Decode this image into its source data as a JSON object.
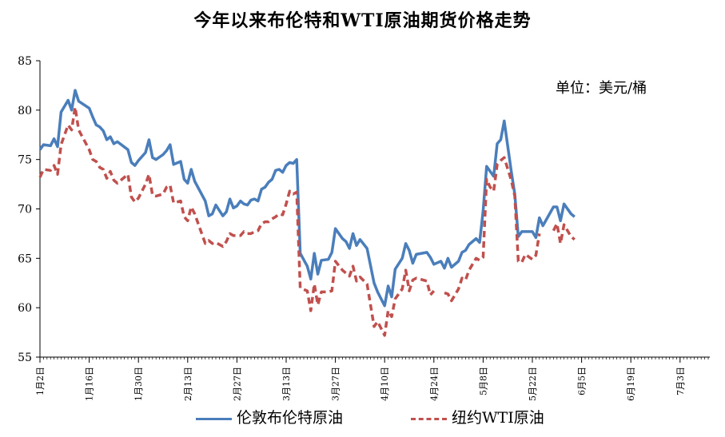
{
  "chart_data": {
    "type": "line",
    "title": "今年以来布伦特和WTI原油期货价格走势",
    "unit_label": "单位：美元/桶",
    "ylim": [
      55,
      85
    ],
    "y_ticks": [
      55,
      60,
      65,
      70,
      75,
      80,
      85
    ],
    "x_tick_labels": [
      "1月2日",
      "1月16日",
      "1月30日",
      "2月13日",
      "2月27日",
      "3月13日",
      "3月27日",
      "4月10日",
      "4月24日",
      "5月8日",
      "5月22日",
      "6月5日",
      "6月19日",
      "7月3日"
    ],
    "x_days": 136,
    "grid": false,
    "legend_position": "bottom",
    "series": [
      {
        "name": "伦敦布伦特原油",
        "color": "#4a7ebb",
        "points": [
          [
            0,
            76
          ],
          [
            1,
            76.5
          ],
          [
            3,
            76.4
          ],
          [
            4,
            77.1
          ],
          [
            5,
            76.3
          ],
          [
            6,
            79.8
          ],
          [
            8,
            81
          ],
          [
            9,
            80
          ],
          [
            10,
            82
          ],
          [
            11,
            80.9
          ],
          [
            14,
            80.2
          ],
          [
            15,
            79.3
          ],
          [
            16,
            78.5
          ],
          [
            17,
            78.3
          ],
          [
            18,
            77.9
          ],
          [
            19,
            77
          ],
          [
            20,
            77.3
          ],
          [
            21,
            76.6
          ],
          [
            22,
            76.8
          ],
          [
            25,
            76
          ],
          [
            26,
            74.7
          ],
          [
            27,
            74.4
          ],
          [
            28,
            74.9
          ],
          [
            30,
            75.7
          ],
          [
            31,
            77
          ],
          [
            32,
            75.2
          ],
          [
            33,
            75
          ],
          [
            35,
            75.5
          ],
          [
            36,
            75.9
          ],
          [
            37,
            76.5
          ],
          [
            38,
            74.5
          ],
          [
            40,
            74.8
          ],
          [
            41,
            73
          ],
          [
            42,
            72.6
          ],
          [
            43,
            74
          ],
          [
            44,
            72.8
          ],
          [
            47,
            70.8
          ],
          [
            48,
            69.3
          ],
          [
            49,
            69.5
          ],
          [
            50,
            70.4
          ],
          [
            52,
            69.3
          ],
          [
            53,
            69.7
          ],
          [
            54,
            71
          ],
          [
            55,
            70.1
          ],
          [
            56,
            70.3
          ],
          [
            57,
            70.8
          ],
          [
            58,
            70.5
          ],
          [
            59,
            70.4
          ],
          [
            60,
            70.9
          ],
          [
            61,
            71
          ],
          [
            62,
            70.8
          ],
          [
            63,
            72
          ],
          [
            64,
            72.2
          ],
          [
            65,
            72.7
          ],
          [
            66,
            73
          ],
          [
            67,
            73.9
          ],
          [
            68,
            74
          ],
          [
            69,
            73.7
          ],
          [
            70,
            74.4
          ],
          [
            71,
            74.7
          ],
          [
            72,
            74.6
          ],
          [
            73,
            75
          ],
          [
            74,
            65.5
          ],
          [
            76,
            64.2
          ],
          [
            77,
            62.9
          ],
          [
            78,
            65.5
          ],
          [
            79,
            63.4
          ],
          [
            80,
            64.8
          ],
          [
            82,
            64.9
          ],
          [
            83,
            65.6
          ],
          [
            84,
            68
          ],
          [
            86,
            67
          ],
          [
            87,
            66.7
          ],
          [
            88,
            66
          ],
          [
            89,
            67.5
          ],
          [
            90,
            66.3
          ],
          [
            91,
            66.9
          ],
          [
            93,
            66
          ],
          [
            95,
            62.5
          ],
          [
            96,
            61.6
          ],
          [
            98,
            60.2
          ],
          [
            99,
            62.2
          ],
          [
            100,
            61.1
          ],
          [
            101,
            63.9
          ],
          [
            103,
            65
          ],
          [
            104,
            66.5
          ],
          [
            105,
            65.8
          ],
          [
            106,
            64.5
          ],
          [
            107,
            65.4
          ],
          [
            110,
            65.6
          ],
          [
            111,
            65.1
          ],
          [
            112,
            64.4
          ],
          [
            114,
            64.7
          ],
          [
            115,
            64
          ],
          [
            116,
            65
          ],
          [
            117,
            64.1
          ],
          [
            119,
            64.7
          ],
          [
            120,
            65.6
          ],
          [
            121,
            65.8
          ],
          [
            122,
            66.4
          ],
          [
            124,
            67
          ],
          [
            125,
            66.6
          ],
          [
            126,
            69.8
          ],
          [
            127,
            74.3
          ],
          [
            128,
            73.8
          ],
          [
            129,
            73.3
          ],
          [
            130,
            76.6
          ],
          [
            131,
            77
          ],
          [
            132,
            78.9
          ],
          [
            134,
            73.8
          ],
          [
            135,
            71.5
          ],
          [
            136,
            67.2
          ],
          [
            137,
            67.7
          ],
          [
            140,
            67.7
          ],
          [
            141,
            67.1
          ],
          [
            142,
            69.1
          ],
          [
            143,
            68.3
          ],
          [
            146,
            70.2
          ],
          [
            147,
            70.2
          ],
          [
            148,
            68.8
          ],
          [
            149,
            70.5
          ],
          [
            151,
            69.5
          ],
          [
            152,
            69.2
          ]
        ]
      },
      {
        "name": "纽约WTI原油",
        "color": "#c0504d",
        "points": [
          [
            0,
            73.2
          ],
          [
            1,
            74
          ],
          [
            3,
            73.9
          ],
          [
            4,
            74.4
          ],
          [
            5,
            73.5
          ],
          [
            6,
            76.5
          ],
          [
            8,
            78.5
          ],
          [
            9,
            78
          ],
          [
            10,
            80.3
          ],
          [
            11,
            78
          ],
          [
            14,
            76
          ],
          [
            15,
            75
          ],
          [
            16,
            74.8
          ],
          [
            17,
            74.2
          ],
          [
            18,
            74
          ],
          [
            19,
            73.1
          ],
          [
            20,
            73.8
          ],
          [
            21,
            72.9
          ],
          [
            22,
            72.6
          ],
          [
            25,
            73.5
          ],
          [
            26,
            71.2
          ],
          [
            27,
            70.7
          ],
          [
            28,
            71.1
          ],
          [
            30,
            72.5
          ],
          [
            31,
            73.5
          ],
          [
            32,
            71.4
          ],
          [
            33,
            71.3
          ],
          [
            35,
            71.5
          ],
          [
            36,
            72.2
          ],
          [
            37,
            72.4
          ],
          [
            38,
            70.6
          ],
          [
            40,
            70.8
          ],
          [
            41,
            69.2
          ],
          [
            42,
            68.8
          ],
          [
            43,
            70.2
          ],
          [
            44,
            69.5
          ],
          [
            47,
            66.5
          ],
          [
            48,
            66.8
          ],
          [
            49,
            66.5
          ],
          [
            50,
            66.6
          ],
          [
            52,
            66.2
          ],
          [
            53,
            66.7
          ],
          [
            54,
            67.5
          ],
          [
            55,
            67.3
          ],
          [
            56,
            67.3
          ],
          [
            57,
            67.3
          ],
          [
            58,
            67.7
          ],
          [
            59,
            67.5
          ],
          [
            60,
            67.5
          ],
          [
            61,
            67.7
          ],
          [
            62,
            67.8
          ],
          [
            63,
            68.5
          ],
          [
            64,
            68.7
          ],
          [
            65,
            68.7
          ],
          [
            66,
            69
          ],
          [
            67,
            69.2
          ],
          [
            68,
            69.5
          ],
          [
            69,
            69.4
          ],
          [
            70,
            70.5
          ],
          [
            71,
            71.8
          ],
          [
            72,
            71.5
          ],
          [
            73,
            71.7
          ],
          [
            74,
            62
          ],
          [
            76,
            61.7
          ],
          [
            77,
            59.7
          ],
          [
            78,
            62.4
          ],
          [
            79,
            60.3
          ],
          [
            80,
            61.6
          ],
          [
            82,
            61.6
          ],
          [
            83,
            61.7
          ],
          [
            84,
            64.7
          ],
          [
            86,
            63.8
          ],
          [
            87,
            63.5
          ],
          [
            88,
            63.2
          ],
          [
            89,
            64.2
          ],
          [
            90,
            62.7
          ],
          [
            91,
            63.1
          ],
          [
            93,
            62.4
          ],
          [
            95,
            58.1
          ],
          [
            96,
            58.6
          ],
          [
            98,
            57.2
          ],
          [
            99,
            59.7
          ],
          [
            100,
            59.1
          ],
          [
            101,
            60.9
          ],
          [
            103,
            61.9
          ],
          [
            104,
            63.8
          ],
          [
            105,
            61.7
          ],
          [
            106,
            62.8
          ],
          [
            107,
            63
          ],
          [
            110,
            62.7
          ],
          [
            111,
            61.3
          ],
          [
            112,
            61.7
          ],
          [
            114,
            null
          ],
          [
            115,
            61.5
          ],
          [
            116,
            61.4
          ],
          [
            117,
            60.7
          ],
          [
            119,
            61.9
          ],
          [
            120,
            63
          ],
          [
            121,
            62.8
          ],
          [
            122,
            63.8
          ],
          [
            124,
            65
          ],
          [
            125,
            64.8
          ],
          [
            126,
            65.1
          ],
          [
            127,
            73
          ],
          [
            128,
            72.2
          ],
          [
            129,
            71.8
          ],
          [
            130,
            74.5
          ],
          [
            131,
            74.9
          ],
          [
            132,
            75.2
          ],
          [
            134,
            72.9
          ],
          [
            135,
            71.3
          ],
          [
            136,
            64.7
          ],
          [
            137,
            64.6
          ],
          [
            138,
            65.4
          ],
          [
            140,
            64.9
          ],
          [
            141,
            65.3
          ],
          [
            142,
            67.5
          ],
          [
            143,
            null
          ],
          [
            146,
            67.8
          ],
          [
            147,
            68.5
          ],
          [
            148,
            66.5
          ],
          [
            149,
            68.4
          ],
          [
            151,
            67.2
          ],
          [
            152,
            66.9
          ]
        ]
      }
    ]
  }
}
